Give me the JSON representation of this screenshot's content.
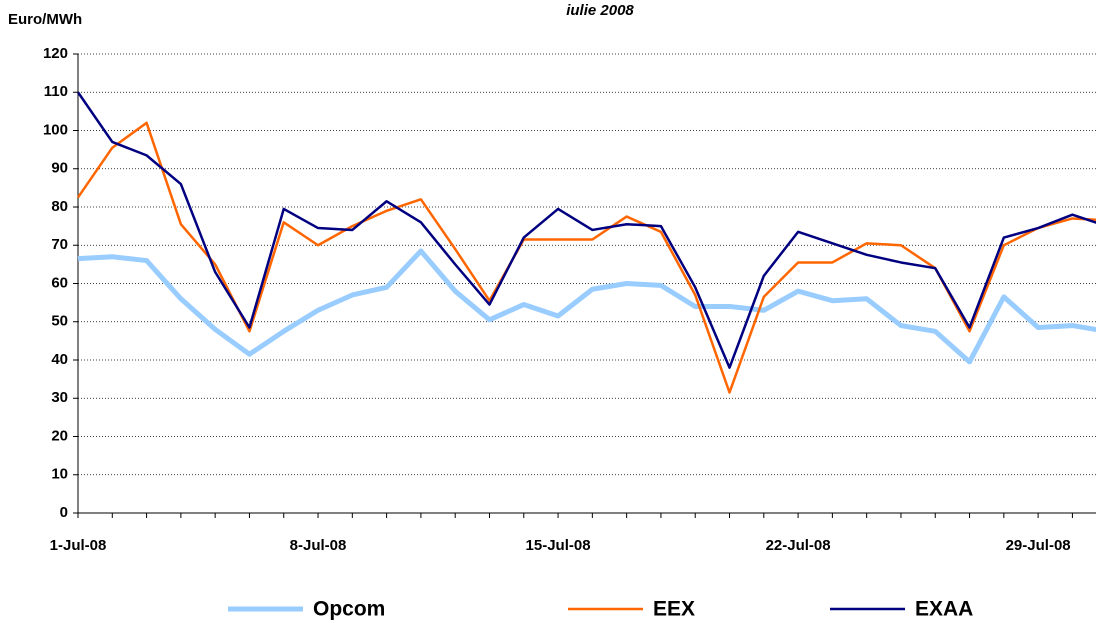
{
  "chart_data": {
    "type": "line",
    "title": "iulie 2008",
    "y_label": "Euro/MWh",
    "categories": [
      "1-Jul-08",
      null,
      null,
      null,
      null,
      null,
      null,
      "8-Jul-08",
      null,
      null,
      null,
      null,
      null,
      null,
      "15-Jul-08",
      null,
      null,
      null,
      null,
      null,
      null,
      "22-Jul-08",
      null,
      null,
      null,
      null,
      null,
      null,
      "29-Jul-08",
      null,
      null
    ],
    "series": [
      {
        "name": "Opcom",
        "color": "#99ccff",
        "values": [
          66.5,
          67,
          66,
          56,
          48,
          41.5,
          47.5,
          53,
          57,
          59,
          68.5,
          58,
          50.5,
          54.5,
          51.5,
          58.5,
          60,
          59.5,
          54,
          54,
          53,
          58,
          55.5,
          56,
          49,
          47.5,
          39.5,
          56.5,
          48.5,
          49,
          47.5
        ]
      },
      {
        "name": "EEX",
        "color": "#ff6600",
        "values": [
          82.5,
          95.5,
          102,
          75.5,
          65,
          47.5,
          76,
          70,
          75,
          79,
          82,
          69,
          55.5,
          71.5,
          71.5,
          71.5,
          77.5,
          73.5,
          57,
          31.5,
          56.5,
          65.5,
          65.5,
          70.5,
          70,
          64,
          47.5,
          70,
          74.5,
          77,
          76.5
        ]
      },
      {
        "name": "EXAA",
        "color": "#000080",
        "values": [
          110,
          97,
          93.5,
          86,
          63,
          48.5,
          79.5,
          74.5,
          74,
          81.5,
          76,
          65,
          54.5,
          72,
          79.5,
          74,
          75.5,
          75,
          59,
          38,
          62,
          73.5,
          70.5,
          67.5,
          65.5,
          64,
          48.5,
          72,
          74.5,
          78,
          75
        ]
      }
    ],
    "ylim": [
      0,
      120
    ],
    "yticks": [
      0,
      10,
      20,
      30,
      40,
      50,
      60,
      70,
      80,
      90,
      100,
      110,
      120
    ],
    "grid": true
  }
}
